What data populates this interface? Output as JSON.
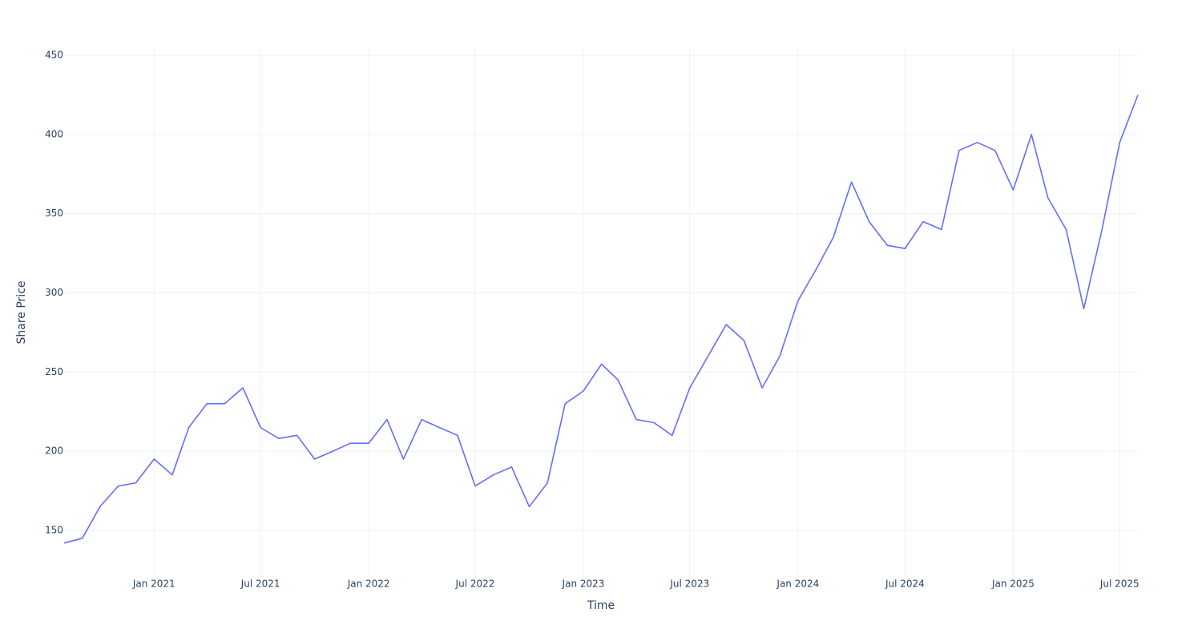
{
  "chart_data": {
    "type": "line",
    "xlabel": "Time",
    "ylabel": "Share Price",
    "x": [
      "2020-08",
      "2020-09",
      "2020-10",
      "2020-11",
      "2020-12",
      "2021-01",
      "2021-02",
      "2021-03",
      "2021-04",
      "2021-05",
      "2021-06",
      "2021-07",
      "2021-08",
      "2021-09",
      "2021-10",
      "2021-11",
      "2021-12",
      "2022-01",
      "2022-02",
      "2022-03",
      "2022-04",
      "2022-05",
      "2022-06",
      "2022-07",
      "2022-08",
      "2022-09",
      "2022-10",
      "2022-11",
      "2022-12",
      "2023-01",
      "2023-02",
      "2023-03",
      "2023-04",
      "2023-05",
      "2023-06",
      "2023-07",
      "2023-08",
      "2023-09",
      "2023-10",
      "2023-11",
      "2023-12",
      "2024-01",
      "2024-02",
      "2024-03",
      "2024-04",
      "2024-05",
      "2024-06",
      "2024-07",
      "2024-08",
      "2024-09",
      "2024-10",
      "2024-11",
      "2024-12",
      "2025-01",
      "2025-02",
      "2025-03",
      "2025-04",
      "2025-05",
      "2025-06",
      "2025-07",
      "2025-08"
    ],
    "series": [
      {
        "color": "#636efa",
        "values": [
          142,
          145,
          165,
          178,
          180,
          195,
          185,
          215,
          230,
          230,
          240,
          215,
          208,
          210,
          195,
          200,
          205,
          205,
          220,
          195,
          220,
          215,
          210,
          178,
          185,
          190,
          165,
          180,
          230,
          238,
          255,
          245,
          220,
          218,
          210,
          240,
          260,
          280,
          270,
          240,
          260,
          295,
          315,
          335,
          370,
          345,
          330,
          328,
          345,
          340,
          390,
          395,
          390,
          365,
          400,
          360,
          340,
          290,
          340,
          395,
          425
        ]
      }
    ],
    "xlim": [
      "2020-08",
      "2025-08"
    ],
    "xticks": [
      {
        "value": "2021-01",
        "label": "Jan 2021"
      },
      {
        "value": "2021-07",
        "label": "Jul 2021"
      },
      {
        "value": "2022-01",
        "label": "Jan 2022"
      },
      {
        "value": "2022-07",
        "label": "Jul 2022"
      },
      {
        "value": "2023-01",
        "label": "Jan 2023"
      },
      {
        "value": "2023-07",
        "label": "Jul 2023"
      },
      {
        "value": "2024-01",
        "label": "Jan 2024"
      },
      {
        "value": "2024-07",
        "label": "Jul 2024"
      },
      {
        "value": "2025-01",
        "label": "Jan 2025"
      },
      {
        "value": "2025-07",
        "label": "Jul 2025"
      }
    ],
    "ylim": [
      120.6,
      454.6
    ],
    "yticks": [
      150,
      200,
      250,
      300,
      350,
      400,
      450
    ],
    "grid": true
  }
}
